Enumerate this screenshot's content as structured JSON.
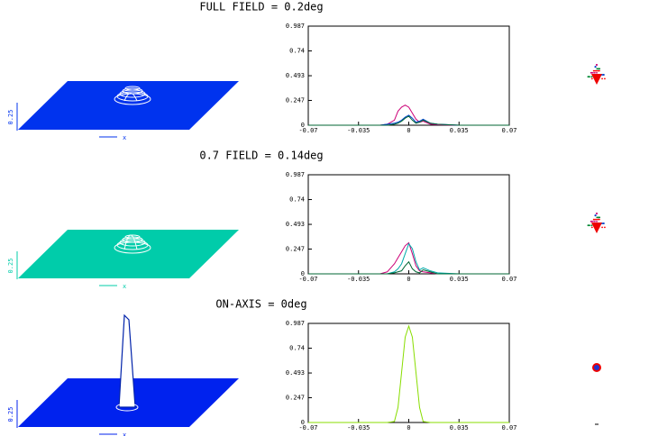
{
  "chart_data": [
    {
      "type": "line",
      "title": "FULL FIELD = 0.2deg",
      "z_scale_label": "0.25",
      "x_axis_label": "x",
      "surface_color": "#0033ee",
      "x": [
        -0.07,
        -0.05,
        -0.035,
        -0.02,
        -0.015,
        -0.01,
        -0.0075,
        -0.005,
        -0.0025,
        0,
        0.0025,
        0.005,
        0.0075,
        0.01,
        0.015,
        0.02,
        0.035,
        0.05,
        0.07
      ],
      "series": [
        {
          "color": "#cc0077",
          "values": [
            0,
            0,
            0,
            0,
            0.01,
            0.05,
            0.14,
            0.18,
            0.2,
            0.18,
            0.12,
            0.06,
            0.03,
            0.04,
            0.01,
            0.005,
            0,
            0,
            0
          ]
        },
        {
          "color": "#0044cc",
          "values": [
            0,
            0,
            0,
            0,
            0.01,
            0.02,
            0.03,
            0.05,
            0.08,
            0.1,
            0.07,
            0.03,
            0.04,
            0.06,
            0.02,
            0.01,
            0,
            0,
            0
          ]
        },
        {
          "color": "#006633",
          "values": [
            0,
            0,
            0,
            0,
            0,
            0.01,
            0.02,
            0.04,
            0.07,
            0.09,
            0.05,
            0.02,
            0.03,
            0.05,
            0.02,
            0.01,
            0,
            0,
            0
          ]
        }
      ],
      "xlim": [
        -0.07,
        0.07
      ],
      "xticks": [
        -0.07,
        -0.035,
        0,
        0.035,
        0.07
      ],
      "ylim": [
        0,
        0.987
      ],
      "yticks": [
        0,
        0.247,
        0.493,
        0.74,
        0.987
      ]
    },
    {
      "type": "line",
      "title": "0.7 FIELD = 0.14deg",
      "z_scale_label": "0.25",
      "x_axis_label": "x",
      "surface_color": "#00ccaa",
      "x": [
        -0.07,
        -0.05,
        -0.035,
        -0.02,
        -0.015,
        -0.01,
        -0.0075,
        -0.005,
        -0.0025,
        0,
        0.0025,
        0.005,
        0.0075,
        0.01,
        0.015,
        0.02,
        0.035,
        0.05,
        0.07
      ],
      "series": [
        {
          "color": "#cc0077",
          "values": [
            0,
            0,
            0,
            0,
            0.02,
            0.1,
            0.16,
            0.22,
            0.28,
            0.31,
            0.2,
            0.08,
            0.03,
            0.02,
            0.01,
            0,
            0,
            0,
            0
          ]
        },
        {
          "color": "#00aaaa",
          "values": [
            0,
            0,
            0,
            0,
            0,
            0.02,
            0.05,
            0.1,
            0.2,
            0.3,
            0.25,
            0.12,
            0.04,
            0.06,
            0.03,
            0.01,
            0,
            0,
            0
          ]
        },
        {
          "color": "#006633",
          "values": [
            0,
            0,
            0,
            0,
            0,
            0.01,
            0.02,
            0.03,
            0.08,
            0.12,
            0.05,
            0.02,
            0.01,
            0.04,
            0.02,
            0,
            0,
            0,
            0
          ]
        }
      ],
      "xlim": [
        -0.07,
        0.07
      ],
      "xticks": [
        -0.07,
        -0.035,
        0,
        0.035,
        0.07
      ],
      "ylim": [
        0,
        0.987
      ],
      "yticks": [
        0,
        0.247,
        0.493,
        0.74,
        0.987
      ]
    },
    {
      "type": "line",
      "title": "ON-AXIS = 0deg",
      "z_scale_label": "0.25",
      "x_axis_label": "x",
      "surface_color": "#0022ee",
      "x": [
        -0.07,
        -0.05,
        -0.035,
        -0.02,
        -0.015,
        -0.01,
        -0.0075,
        -0.005,
        -0.0025,
        0,
        0.0025,
        0.005,
        0.0075,
        0.01,
        0.015,
        0.02,
        0.035,
        0.05,
        0.07
      ],
      "series": [
        {
          "color": "#88dd00",
          "values": [
            0,
            0,
            0,
            0,
            0,
            0.01,
            0.15,
            0.5,
            0.85,
            0.96,
            0.85,
            0.5,
            0.15,
            0.01,
            0,
            0,
            0,
            0,
            0
          ]
        }
      ],
      "xlim": [
        -0.07,
        0.07
      ],
      "xticks": [
        -0.07,
        -0.035,
        0,
        0.035,
        0.07
      ],
      "ylim": [
        0,
        0.987
      ],
      "yticks": [
        0,
        0.247,
        0.493,
        0.74,
        0.987
      ]
    }
  ]
}
